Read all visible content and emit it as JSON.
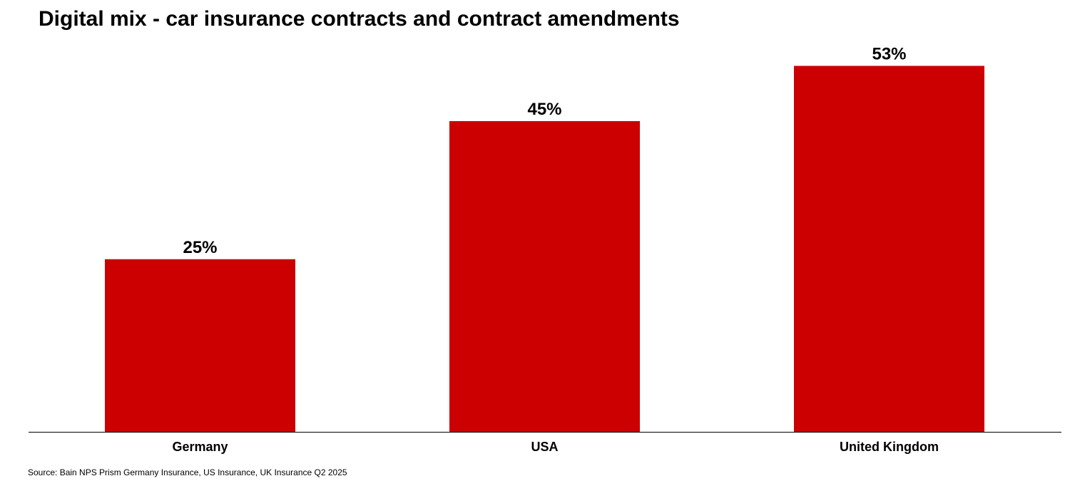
{
  "chart_data": {
    "type": "bar",
    "title": "Digital mix - car insurance contracts and contract amendments",
    "categories": [
      "Germany",
      "USA",
      "United Kingdom"
    ],
    "values": [
      25,
      45,
      53
    ],
    "data_labels": [
      "25%",
      "45%",
      "53%"
    ],
    "xlabel": "",
    "ylabel": "",
    "ylim": [
      0,
      62
    ],
    "grid": false,
    "bar_color": "#CC0000",
    "source": "Source: Bain NPS Prism Germany Insurance, US Insurance, UK Insurance Q2 2025"
  }
}
